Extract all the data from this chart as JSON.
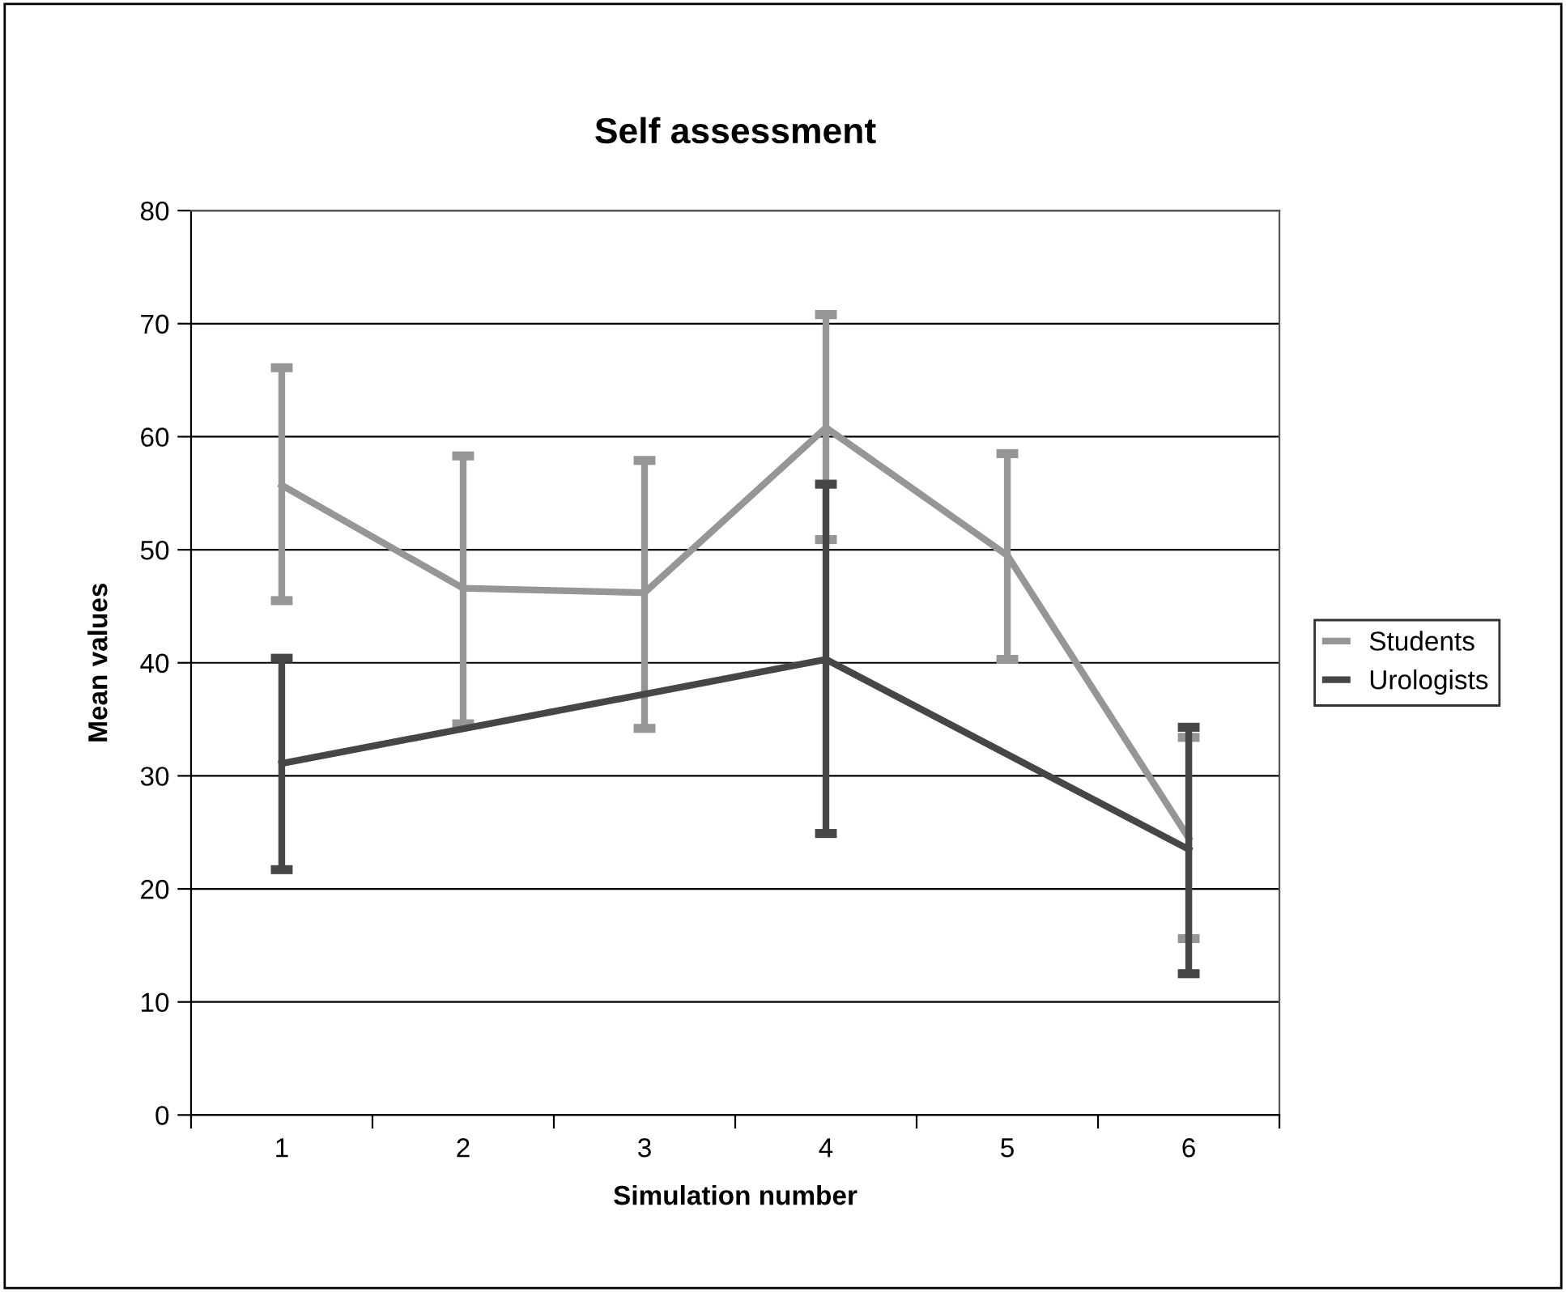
{
  "chart_data": {
    "type": "line",
    "title": "Self assessment",
    "xlabel": "Simulation number",
    "ylabel": "Mean values",
    "categories": [
      "1",
      "2",
      "3",
      "4",
      "5",
      "6"
    ],
    "series": [
      {
        "name": "Students",
        "color": "#969696",
        "values": [
          55.7,
          46.6,
          46.2,
          60.8,
          49.5,
          24.5
        ],
        "errors": [
          [
            45.5,
            66.1
          ],
          [
            34.6,
            58.3
          ],
          [
            34.2,
            57.9
          ],
          [
            50.9,
            70.8
          ],
          [
            40.3,
            58.5
          ],
          [
            15.6,
            33.4
          ]
        ]
      },
      {
        "name": "Urologists",
        "color": "#464646",
        "values": [
          31.1,
          null,
          null,
          40.3,
          null,
          23.5
        ],
        "errors": [
          [
            21.7,
            40.4
          ],
          null,
          null,
          [
            24.9,
            55.8
          ],
          null,
          [
            12.5,
            34.3
          ]
        ]
      }
    ],
    "ylim": [
      0,
      80
    ],
    "yticks": [
      0,
      10,
      20,
      30,
      40,
      50,
      60,
      70,
      80
    ],
    "grid": "y",
    "legend": "right",
    "marker": "none",
    "line_style": "solid"
  }
}
